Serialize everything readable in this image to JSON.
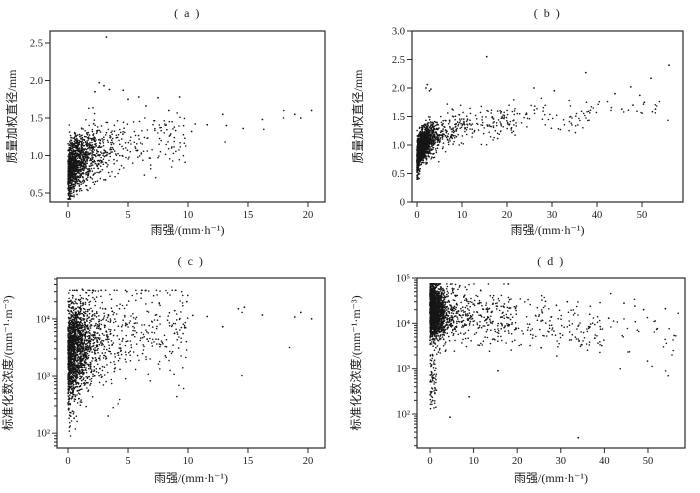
{
  "figure": {
    "background": "#ffffff",
    "ink_color": "#1b1b1b",
    "dot_color": "#161616",
    "axis_color": "#2a2a2a"
  },
  "chart_data": [
    {
      "id": "a",
      "type": "scatter",
      "title": "( a )",
      "xlabel": "雨强/(mm·h⁻¹)",
      "ylabel": "质量加权直径/mm",
      "xscale": "linear",
      "yscale": "linear",
      "xlim": [
        -1.5,
        21.42
      ],
      "ylim": [
        0.38,
        2.66
      ],
      "xticks": {
        "values": [
          0,
          5,
          10,
          15,
          20
        ],
        "labels": [
          "0",
          "5",
          "10",
          "15",
          "20"
        ]
      },
      "yticks": {
        "values": [
          0.5,
          1.0,
          1.5,
          2.0,
          2.5
        ],
        "labels": [
          "0.5",
          "1.0",
          "1.5",
          "2.0",
          "2.5"
        ]
      },
      "grid": false,
      "legend": null,
      "n_points": 1400,
      "seed": 101,
      "x_mix": [
        {
          "type": "exp",
          "scale": 1.05,
          "w": 0.906
        },
        {
          "type": "uniform",
          "min": 3.5,
          "max": 10,
          "w": 0.09
        },
        {
          "type": "uniform",
          "min": 10,
          "max": 20.5,
          "w": 0.004
        }
      ],
      "y_model": {
        "kind": "power",
        "a": 0.93,
        "x0": 0.15,
        "p": 0.13,
        "sd": 0.185,
        "clamp": [
          0.42,
          1.98
        ]
      },
      "notable_points": [
        [
          3.2,
          2.58
        ],
        [
          2.25,
          1.85
        ],
        [
          2.6,
          1.97
        ],
        [
          3.0,
          1.93
        ],
        [
          3.45,
          1.88
        ],
        [
          4.6,
          1.87
        ],
        [
          5.0,
          1.75
        ],
        [
          5.9,
          1.78
        ],
        [
          6.5,
          1.66
        ],
        [
          7.5,
          1.77
        ],
        [
          9.3,
          1.78
        ],
        [
          8.4,
          1.6
        ],
        [
          10.3,
          1.32
        ],
        [
          10.6,
          1.42
        ],
        [
          11.6,
          1.41
        ],
        [
          12.9,
          1.55
        ],
        [
          13.2,
          1.4
        ],
        [
          14.6,
          1.36
        ],
        [
          16.2,
          1.48
        ],
        [
          18.9,
          1.55
        ],
        [
          19.4,
          1.5
        ],
        [
          20.3,
          1.6
        ]
      ]
    },
    {
      "id": "b",
      "type": "scatter",
      "title": "( b )",
      "xlabel": "雨强/(mm·h⁻¹)",
      "ylabel": "质量加权直径/mm",
      "xscale": "linear",
      "yscale": "linear",
      "xlim": [
        -1.11,
        59.11
      ],
      "ylim": [
        0,
        3.0
      ],
      "xticks": {
        "values": [
          0,
          10,
          20,
          30,
          40,
          50
        ],
        "labels": [
          "0",
          "10",
          "20",
          "30",
          "40",
          "50"
        ]
      },
      "yticks": {
        "values": [
          0,
          0.5,
          1.0,
          1.5,
          2.0,
          2.5,
          3.0
        ],
        "labels": [
          "0",
          "0.5",
          "1.0",
          "1.5",
          "2.0",
          "2.5",
          "3.0"
        ]
      },
      "grid": false,
      "legend": null,
      "n_points": 1900,
      "seed": 202,
      "x_mix": [
        {
          "type": "exp",
          "scale": 1.5,
          "w": 0.85
        },
        {
          "type": "uniform",
          "min": 6,
          "max": 22,
          "w": 0.105
        },
        {
          "type": "uniform",
          "min": 22,
          "max": 40,
          "w": 0.035
        },
        {
          "type": "uniform",
          "min": 40,
          "max": 57,
          "w": 0.01
        }
      ],
      "y_model": {
        "kind": "power",
        "a": 0.95,
        "x0": 0.15,
        "p": 0.135,
        "sd": 0.14,
        "clamp": [
          0.4,
          2.1
        ]
      },
      "notable_points": [
        [
          15.5,
          2.55
        ],
        [
          37.5,
          2.27
        ],
        [
          56.0,
          2.4
        ],
        [
          52.0,
          2.17
        ],
        [
          2.3,
          2.06
        ],
        [
          2.0,
          2.0
        ],
        [
          3.1,
          1.98
        ],
        [
          2.8,
          1.95
        ],
        [
          26.0,
          2.0
        ],
        [
          30.5,
          1.95
        ],
        [
          44.0,
          1.9
        ],
        [
          47.5,
          2.02
        ],
        [
          49.5,
          1.87
        ],
        [
          45.5,
          1.63
        ],
        [
          50.5,
          1.75
        ],
        [
          53.0,
          1.63
        ],
        [
          48.0,
          1.7
        ]
      ]
    },
    {
      "id": "c",
      "type": "scatter",
      "title": "( c )",
      "xlabel": "雨强/(mm·h⁻¹)",
      "ylabel": "标准化数浓度/(mm⁻¹·m⁻³)",
      "xscale": "linear",
      "yscale": "log",
      "xlim": [
        -0.92,
        21.42
      ],
      "ylim": [
        55,
        52000
      ],
      "xticks": {
        "values": [
          0,
          5,
          10,
          15,
          20
        ],
        "labels": [
          "0",
          "5",
          "10",
          "15",
          "20"
        ]
      },
      "yticks": {
        "values": [
          100,
          1000,
          10000
        ],
        "labels": [
          "10²",
          "10³",
          "10⁴"
        ]
      },
      "grid": false,
      "legend": null,
      "n_points": 2000,
      "seed": 303,
      "x_mix": [
        {
          "type": "exp",
          "scale": 1.0,
          "w": 0.891
        },
        {
          "type": "uniform",
          "min": 3,
          "max": 10,
          "w": 0.105
        },
        {
          "type": "uniform",
          "min": 10,
          "max": 21,
          "w": 0.004
        }
      ],
      "y_model": {
        "kind": "loglog",
        "c0": 3.55,
        "c1": 0.1,
        "x0": 0.15,
        "sd": 0.4,
        "clamp": [
          1.95,
          4.5
        ]
      },
      "low_tail": {
        "prob": 0.035,
        "xmax": 0.8,
        "lymin": 2.0,
        "lymax": 3.1
      },
      "notable_points": [
        [
          3.35,
          200
        ],
        [
          1.2,
          33000
        ],
        [
          2.1,
          31000
        ],
        [
          4.9,
          30000
        ],
        [
          6.1,
          28000
        ],
        [
          9.9,
          20000
        ],
        [
          10.4,
          11500
        ],
        [
          11.6,
          11000
        ],
        [
          12.9,
          7300
        ],
        [
          14.2,
          15000
        ],
        [
          14.7,
          16000
        ],
        [
          16.2,
          11700
        ],
        [
          18.9,
          10800
        ],
        [
          19.4,
          13000
        ],
        [
          20.3,
          10000
        ],
        [
          7.6,
          19000
        ],
        [
          8.9,
          14000
        ]
      ]
    },
    {
      "id": "d",
      "type": "scatter",
      "title": "( d )",
      "xlabel": "雨强/(mm·h⁻¹)",
      "ylabel": "标准化数浓度/(mm⁻¹·m⁻³)",
      "xscale": "linear",
      "yscale": "log",
      "xlim": [
        -2.98,
        58.49
      ],
      "ylim": [
        17.8,
        100000
      ],
      "xticks": {
        "values": [
          0,
          10,
          20,
          30,
          40,
          50
        ],
        "labels": [
          "0",
          "10",
          "20",
          "30",
          "40",
          "50"
        ]
      },
      "yticks": {
        "values": [
          100,
          1000,
          10000,
          100000
        ],
        "labels": [
          "10²",
          "10³",
          "10⁴",
          "10⁵"
        ]
      },
      "grid": false,
      "legend": null,
      "n_points": 2400,
      "seed": 404,
      "x_mix": [
        {
          "type": "exp",
          "scale": 1.35,
          "w": 0.834
        },
        {
          "type": "uniform",
          "min": 5,
          "max": 20,
          "w": 0.105
        },
        {
          "type": "uniform",
          "min": 20,
          "max": 40,
          "w": 0.048
        },
        {
          "type": "uniform",
          "min": 40,
          "max": 57,
          "w": 0.013
        }
      ],
      "y_model": {
        "kind": "loglin",
        "c0": 4.28,
        "c1": -0.011,
        "sd": 0.3,
        "clamp": [
          2.05,
          4.87
        ]
      },
      "low_tail": {
        "prob": 0.045,
        "xmax": 1.5,
        "lymin": 2.1,
        "lymax": 3.4
      },
      "notable_points": [
        [
          34.0,
          30
        ],
        [
          4.6,
          85
        ],
        [
          9.0,
          240
        ],
        [
          15.6,
          900
        ],
        [
          25.5,
          2900
        ],
        [
          56.0,
          5400
        ],
        [
          52.0,
          7400
        ],
        [
          37.8,
          4700
        ],
        [
          47.0,
          24000
        ],
        [
          44.5,
          28000
        ],
        [
          31.5,
          30000
        ],
        [
          26.5,
          30500
        ],
        [
          29.0,
          25000
        ],
        [
          41.0,
          13000
        ],
        [
          49.0,
          20000
        ],
        [
          54.0,
          21000
        ]
      ]
    }
  ]
}
